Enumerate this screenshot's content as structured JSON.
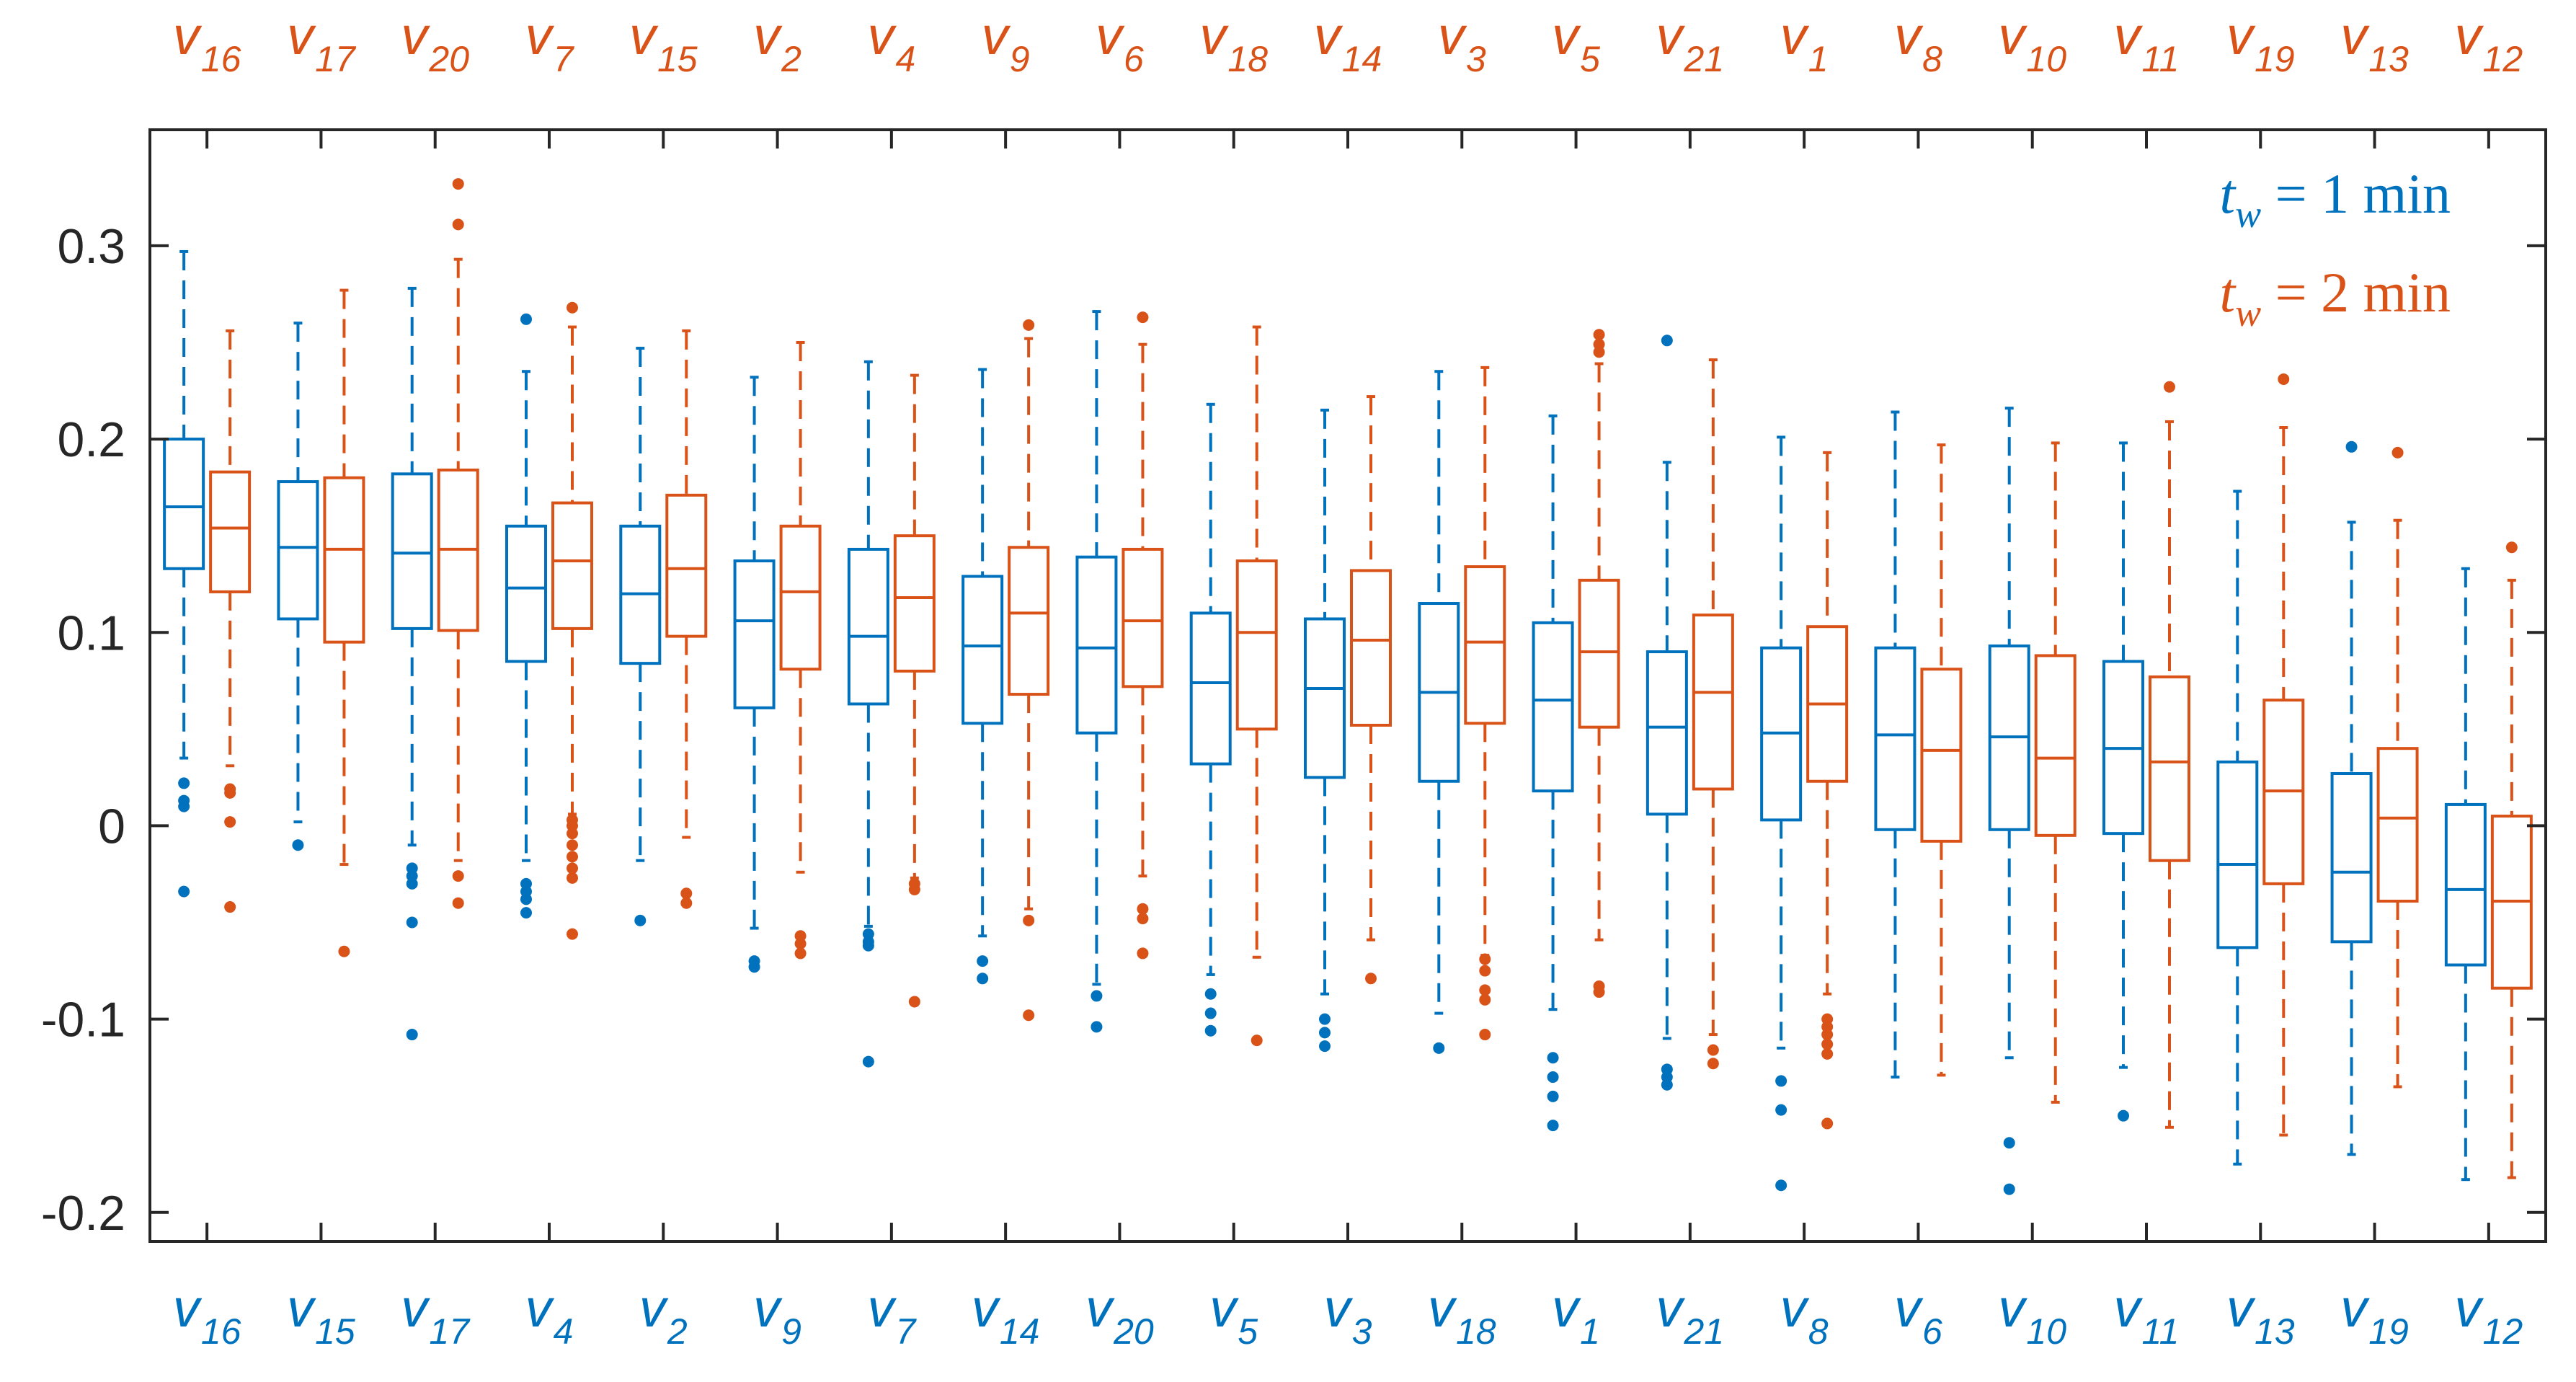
{
  "chart_data": {
    "type": "box",
    "title": "",
    "xlabel": "",
    "ylabel": "",
    "ylim": [
      -0.215,
      0.36
    ],
    "yticks": [
      -0.2,
      -0.1,
      0,
      0.1,
      0.2,
      0.3
    ],
    "ytick_labels": [
      "-0.2",
      "-0.1",
      "0",
      "0.1",
      "0.2",
      "0.3"
    ],
    "grid": false,
    "legend_position": "top-right",
    "series": [
      {
        "name": "t_w = 1 min",
        "legend_label": {
          "var": "t",
          "sub": "w",
          "rest": " = 1 min"
        },
        "color": "#0072BD",
        "axis_labels": [
          {
            "base": "v",
            "sub": "16"
          },
          {
            "base": "v",
            "sub": "15"
          },
          {
            "base": "v",
            "sub": "17"
          },
          {
            "base": "v",
            "sub": "4"
          },
          {
            "base": "v",
            "sub": "2"
          },
          {
            "base": "v",
            "sub": "9"
          },
          {
            "base": "v",
            "sub": "7"
          },
          {
            "base": "v",
            "sub": "14"
          },
          {
            "base": "v",
            "sub": "20"
          },
          {
            "base": "v",
            "sub": "5"
          },
          {
            "base": "v",
            "sub": "3"
          },
          {
            "base": "v",
            "sub": "18"
          },
          {
            "base": "v",
            "sub": "1"
          },
          {
            "base": "v",
            "sub": "21"
          },
          {
            "base": "v",
            "sub": "8"
          },
          {
            "base": "v",
            "sub": "6"
          },
          {
            "base": "v",
            "sub": "10"
          },
          {
            "base": "v",
            "sub": "11"
          },
          {
            "base": "v",
            "sub": "13"
          },
          {
            "base": "v",
            "sub": "19"
          },
          {
            "base": "v",
            "sub": "12"
          }
        ],
        "boxes": [
          {
            "label": "v16",
            "whisker_low": 0.035,
            "q1": 0.133,
            "median": 0.165,
            "q3": 0.2,
            "whisker_high": 0.297,
            "outliers": [
              0.022,
              0.013,
              0.01,
              -0.034
            ]
          },
          {
            "label": "v15",
            "whisker_low": 0.002,
            "q1": 0.107,
            "median": 0.144,
            "q3": 0.178,
            "whisker_high": 0.26,
            "outliers": [
              -0.01
            ]
          },
          {
            "label": "v17",
            "whisker_low": -0.01,
            "q1": 0.102,
            "median": 0.141,
            "q3": 0.182,
            "whisker_high": 0.278,
            "outliers": [
              -0.022,
              -0.026,
              -0.03,
              -0.05,
              -0.108
            ]
          },
          {
            "label": "v4",
            "whisker_low": -0.018,
            "q1": 0.085,
            "median": 0.123,
            "q3": 0.155,
            "whisker_high": 0.235,
            "outliers": [
              0.262,
              -0.03,
              -0.034,
              -0.038,
              -0.045
            ]
          },
          {
            "label": "v2",
            "whisker_low": -0.018,
            "q1": 0.084,
            "median": 0.12,
            "q3": 0.155,
            "whisker_high": 0.247,
            "outliers": [
              -0.049
            ]
          },
          {
            "label": "v9",
            "whisker_low": -0.053,
            "q1": 0.061,
            "median": 0.106,
            "q3": 0.137,
            "whisker_high": 0.232,
            "outliers": [
              -0.07,
              -0.073
            ]
          },
          {
            "label": "v7",
            "whisker_low": -0.052,
            "q1": 0.063,
            "median": 0.098,
            "q3": 0.143,
            "whisker_high": 0.24,
            "outliers": [
              -0.056,
              -0.06,
              -0.062,
              -0.122
            ]
          },
          {
            "label": "v14",
            "whisker_low": -0.057,
            "q1": 0.053,
            "median": 0.093,
            "q3": 0.129,
            "whisker_high": 0.236,
            "outliers": [
              -0.07,
              -0.079
            ]
          },
          {
            "label": "v20",
            "whisker_low": -0.082,
            "q1": 0.048,
            "median": 0.092,
            "q3": 0.139,
            "whisker_high": 0.266,
            "outliers": [
              -0.088,
              -0.104
            ]
          },
          {
            "label": "v5",
            "whisker_low": -0.077,
            "q1": 0.032,
            "median": 0.074,
            "q3": 0.11,
            "whisker_high": 0.218,
            "outliers": [
              -0.087,
              -0.097,
              -0.106
            ]
          },
          {
            "label": "v3",
            "whisker_low": -0.087,
            "q1": 0.025,
            "median": 0.071,
            "q3": 0.107,
            "whisker_high": 0.215,
            "outliers": [
              -0.1,
              -0.107,
              -0.114
            ]
          },
          {
            "label": "v18",
            "whisker_low": -0.097,
            "q1": 0.023,
            "median": 0.069,
            "q3": 0.115,
            "whisker_high": 0.235,
            "outliers": [
              -0.115
            ]
          },
          {
            "label": "v1",
            "whisker_low": -0.095,
            "q1": 0.018,
            "median": 0.065,
            "q3": 0.105,
            "whisker_high": 0.212,
            "outliers": [
              -0.12,
              -0.13,
              -0.14,
              -0.155
            ]
          },
          {
            "label": "v21",
            "whisker_low": -0.11,
            "q1": 0.006,
            "median": 0.051,
            "q3": 0.09,
            "whisker_high": 0.188,
            "outliers": [
              0.251,
              -0.126,
              -0.13,
              -0.134
            ]
          },
          {
            "label": "v8",
            "whisker_low": -0.115,
            "q1": 0.003,
            "median": 0.048,
            "q3": 0.092,
            "whisker_high": 0.201,
            "outliers": [
              -0.132,
              -0.147,
              -0.186
            ]
          },
          {
            "label": "v6",
            "whisker_low": -0.13,
            "q1": -0.002,
            "median": 0.047,
            "q3": 0.092,
            "whisker_high": 0.214,
            "outliers": []
          },
          {
            "label": "v10",
            "whisker_low": -0.12,
            "q1": -0.002,
            "median": 0.046,
            "q3": 0.093,
            "whisker_high": 0.216,
            "outliers": [
              -0.164,
              -0.188
            ]
          },
          {
            "label": "v11",
            "whisker_low": -0.125,
            "q1": -0.004,
            "median": 0.04,
            "q3": 0.085,
            "whisker_high": 0.198,
            "outliers": [
              -0.15
            ]
          },
          {
            "label": "v13",
            "whisker_low": -0.175,
            "q1": -0.063,
            "median": -0.02,
            "q3": 0.033,
            "whisker_high": 0.173,
            "outliers": []
          },
          {
            "label": "v19",
            "whisker_low": -0.17,
            "q1": -0.06,
            "median": -0.024,
            "q3": 0.027,
            "whisker_high": 0.157,
            "outliers": [
              0.196
            ]
          },
          {
            "label": "v12",
            "whisker_low": -0.183,
            "q1": -0.072,
            "median": -0.033,
            "q3": 0.011,
            "whisker_high": 0.133,
            "outliers": []
          }
        ]
      },
      {
        "name": "t_w = 2 min",
        "legend_label": {
          "var": "t",
          "sub": "w",
          "rest": " = 2 min"
        },
        "color": "#D95319",
        "axis_labels": [
          {
            "base": "v",
            "sub": "16"
          },
          {
            "base": "v",
            "sub": "17"
          },
          {
            "base": "v",
            "sub": "20"
          },
          {
            "base": "v",
            "sub": "7"
          },
          {
            "base": "v",
            "sub": "15"
          },
          {
            "base": "v",
            "sub": "2"
          },
          {
            "base": "v",
            "sub": "4"
          },
          {
            "base": "v",
            "sub": "9"
          },
          {
            "base": "v",
            "sub": "6"
          },
          {
            "base": "v",
            "sub": "18"
          },
          {
            "base": "v",
            "sub": "14"
          },
          {
            "base": "v",
            "sub": "3"
          },
          {
            "base": "v",
            "sub": "5"
          },
          {
            "base": "v",
            "sub": "21"
          },
          {
            "base": "v",
            "sub": "1"
          },
          {
            "base": "v",
            "sub": "8"
          },
          {
            "base": "v",
            "sub": "10"
          },
          {
            "base": "v",
            "sub": "11"
          },
          {
            "base": "v",
            "sub": "19"
          },
          {
            "base": "v",
            "sub": "13"
          },
          {
            "base": "v",
            "sub": "12"
          }
        ],
        "boxes": [
          {
            "label": "v16",
            "whisker_low": 0.031,
            "q1": 0.121,
            "median": 0.154,
            "q3": 0.183,
            "whisker_high": 0.256,
            "outliers": [
              0.019,
              0.017,
              0.002,
              -0.042
            ]
          },
          {
            "label": "v17",
            "whisker_low": -0.02,
            "q1": 0.095,
            "median": 0.143,
            "q3": 0.18,
            "whisker_high": 0.277,
            "outliers": [
              -0.065
            ]
          },
          {
            "label": "v20",
            "whisker_low": -0.018,
            "q1": 0.101,
            "median": 0.143,
            "q3": 0.184,
            "whisker_high": 0.293,
            "outliers": [
              0.332,
              0.311,
              -0.026,
              -0.04
            ]
          },
          {
            "label": "v7",
            "whisker_low": 0.006,
            "q1": 0.102,
            "median": 0.137,
            "q3": 0.167,
            "whisker_high": 0.258,
            "outliers": [
              0.268,
              0.003,
              0.0,
              -0.004,
              -0.01,
              -0.016,
              -0.022,
              -0.027,
              -0.056
            ]
          },
          {
            "label": "v15",
            "whisker_low": -0.006,
            "q1": 0.098,
            "median": 0.133,
            "q3": 0.171,
            "whisker_high": 0.256,
            "outliers": [
              -0.035,
              -0.04
            ]
          },
          {
            "label": "v2",
            "whisker_low": -0.024,
            "q1": 0.081,
            "median": 0.121,
            "q3": 0.155,
            "whisker_high": 0.25,
            "outliers": [
              -0.057,
              -0.061,
              -0.066
            ]
          },
          {
            "label": "v4",
            "whisker_low": -0.027,
            "q1": 0.08,
            "median": 0.118,
            "q3": 0.15,
            "whisker_high": 0.233,
            "outliers": [
              -0.03,
              -0.033,
              -0.091
            ]
          },
          {
            "label": "v9",
            "whisker_low": -0.043,
            "q1": 0.068,
            "median": 0.11,
            "q3": 0.144,
            "whisker_high": 0.252,
            "outliers": [
              0.259,
              -0.049,
              -0.098
            ]
          },
          {
            "label": "v6",
            "whisker_low": -0.026,
            "q1": 0.072,
            "median": 0.106,
            "q3": 0.143,
            "whisker_high": 0.249,
            "outliers": [
              0.263,
              -0.043,
              -0.048,
              -0.066
            ]
          },
          {
            "label": "v18",
            "whisker_low": -0.068,
            "q1": 0.05,
            "median": 0.1,
            "q3": 0.137,
            "whisker_high": 0.258,
            "outliers": [
              -0.111
            ]
          },
          {
            "label": "v14",
            "whisker_low": -0.059,
            "q1": 0.052,
            "median": 0.096,
            "q3": 0.132,
            "whisker_high": 0.222,
            "outliers": [
              -0.079
            ]
          },
          {
            "label": "v3",
            "whisker_low": -0.067,
            "q1": 0.053,
            "median": 0.095,
            "q3": 0.134,
            "whisker_high": 0.237,
            "outliers": [
              -0.069,
              -0.075,
              -0.085,
              -0.09,
              -0.108
            ]
          },
          {
            "label": "v5",
            "whisker_low": -0.059,
            "q1": 0.051,
            "median": 0.09,
            "q3": 0.127,
            "whisker_high": 0.239,
            "outliers": [
              0.254,
              0.249,
              0.245,
              -0.083,
              -0.086
            ]
          },
          {
            "label": "v21",
            "whisker_low": -0.108,
            "q1": 0.019,
            "median": 0.069,
            "q3": 0.109,
            "whisker_high": 0.241,
            "outliers": [
              -0.116,
              -0.123
            ]
          },
          {
            "label": "v1",
            "whisker_low": -0.087,
            "q1": 0.023,
            "median": 0.063,
            "q3": 0.103,
            "whisker_high": 0.193,
            "outliers": [
              -0.1,
              -0.104,
              -0.108,
              -0.113,
              -0.118,
              -0.154
            ]
          },
          {
            "label": "v8",
            "whisker_low": -0.129,
            "q1": -0.008,
            "median": 0.039,
            "q3": 0.081,
            "whisker_high": 0.197,
            "outliers": []
          },
          {
            "label": "v10",
            "whisker_low": -0.143,
            "q1": -0.005,
            "median": 0.035,
            "q3": 0.088,
            "whisker_high": 0.198,
            "outliers": []
          },
          {
            "label": "v11",
            "whisker_low": -0.156,
            "q1": -0.018,
            "median": 0.033,
            "q3": 0.077,
            "whisker_high": 0.209,
            "outliers": [
              0.227
            ]
          },
          {
            "label": "v19",
            "whisker_low": -0.16,
            "q1": -0.03,
            "median": 0.018,
            "q3": 0.065,
            "whisker_high": 0.206,
            "outliers": [
              0.231
            ]
          },
          {
            "label": "v13",
            "whisker_low": -0.135,
            "q1": -0.039,
            "median": 0.004,
            "q3": 0.04,
            "whisker_high": 0.158,
            "outliers": [
              0.193
            ]
          },
          {
            "label": "v12",
            "whisker_low": -0.182,
            "q1": -0.084,
            "median": -0.039,
            "q3": 0.005,
            "whisker_high": 0.127,
            "outliers": [
              0.144
            ]
          }
        ]
      }
    ]
  }
}
